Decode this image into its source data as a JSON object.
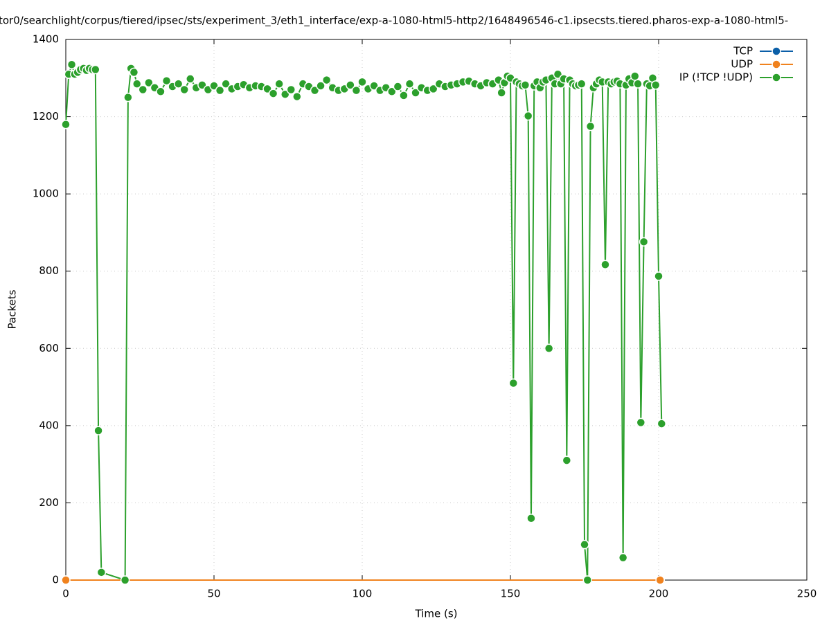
{
  "chart_data": {
    "type": "line",
    "title": "tor0/searchlight/corpus/tiered/ipsec/sts/experiment_3/eth1_interface/exp-a-1080-html5-http2/1648496546-c1.ipsecsts.tiered.pharos-exp-a-1080-html5-",
    "xlabel": "Time (s)",
    "ylabel": "Packets",
    "xlim": [
      0,
      250
    ],
    "xticks": [
      0,
      50,
      100,
      150,
      200,
      250
    ],
    "ylim": [
      0,
      1400
    ],
    "yticks": [
      0,
      200,
      400,
      600,
      800,
      1000,
      1200,
      1400
    ],
    "grid": true,
    "legend": "upper right",
    "series": [
      {
        "name": "TCP",
        "color": "#0b5fa8",
        "x": [
          0,
          200.5
        ],
        "values": [
          0,
          0
        ]
      },
      {
        "name": "UDP",
        "color": "#f0821e",
        "x": [
          0,
          200.5
        ],
        "values": [
          0,
          0
        ]
      },
      {
        "name": "IP (!TCP  !UDP)",
        "color": "#2ca02c",
        "x": [
          0,
          1,
          2,
          3,
          4,
          5,
          6,
          7,
          8,
          9,
          10,
          11,
          12,
          20,
          21,
          22,
          23,
          24,
          26,
          28,
          30,
          32,
          34,
          36,
          38,
          40,
          42,
          44,
          46,
          48,
          50,
          52,
          54,
          56,
          58,
          60,
          62,
          64,
          66,
          68,
          70,
          72,
          74,
          76,
          78,
          80,
          82,
          84,
          86,
          88,
          90,
          92,
          94,
          96,
          98,
          100,
          102,
          104,
          106,
          108,
          110,
          112,
          114,
          116,
          118,
          120,
          122,
          124,
          126,
          128,
          130,
          132,
          134,
          136,
          138,
          140,
          142,
          144,
          146,
          147,
          148,
          149,
          150,
          151,
          152,
          153,
          154,
          155,
          156,
          157,
          158,
          159,
          160,
          161,
          162,
          163,
          164,
          165,
          166,
          167,
          168,
          169,
          170,
          171,
          172,
          173,
          174,
          175,
          176,
          177,
          178,
          179,
          180,
          181,
          182,
          183,
          184,
          185,
          186,
          187,
          188,
          189,
          190,
          191,
          192,
          193,
          194,
          195,
          196,
          197,
          198,
          199,
          200,
          201
        ],
        "values": [
          1180,
          1310,
          1335,
          1310,
          1315,
          1322,
          1325,
          1320,
          1325,
          1322,
          1322,
          387,
          20,
          0,
          1250,
          1325,
          1315,
          1285,
          1270,
          1288,
          1275,
          1265,
          1293,
          1278,
          1285,
          1270,
          1298,
          1275,
          1282,
          1270,
          1280,
          1268,
          1285,
          1272,
          1278,
          1283,
          1275,
          1280,
          1278,
          1272,
          1260,
          1285,
          1258,
          1270,
          1252,
          1285,
          1278,
          1268,
          1280,
          1295,
          1275,
          1268,
          1272,
          1282,
          1268,
          1290,
          1272,
          1280,
          1268,
          1275,
          1265,
          1278,
          1255,
          1285,
          1262,
          1275,
          1268,
          1272,
          1285,
          1278,
          1282,
          1285,
          1290,
          1292,
          1285,
          1280,
          1288,
          1285,
          1295,
          1262,
          1288,
          1305,
          1300,
          510,
          1290,
          1285,
          1280,
          1282,
          1202,
          160,
          1280,
          1290,
          1275,
          1290,
          1295,
          600,
          1300,
          1285,
          1310,
          1285,
          1298,
          310,
          1295,
          1285,
          1280,
          1282,
          1285,
          92,
          0,
          1175,
          1275,
          1285,
          1295,
          1290,
          817,
          1290,
          1285,
          1290,
          1292,
          1285,
          58,
          1282,
          1298,
          1288,
          1305,
          1285,
          408,
          876,
          1285,
          1280,
          1300,
          1282,
          787,
          405
        ]
      }
    ]
  }
}
